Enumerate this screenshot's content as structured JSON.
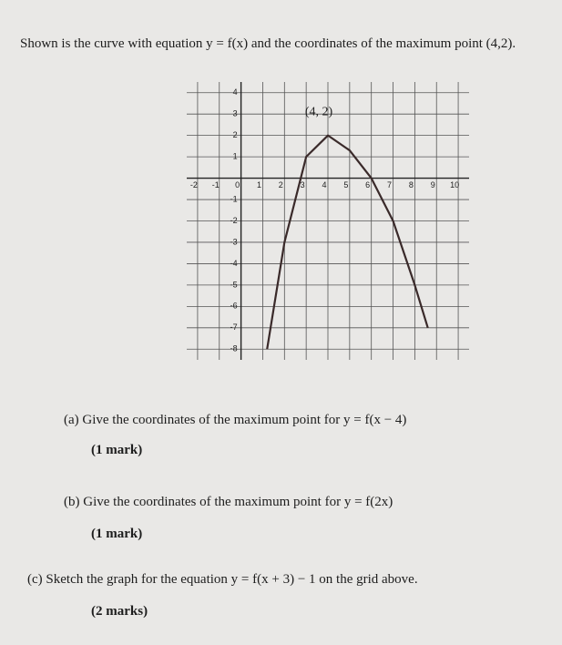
{
  "intro": "Shown is the curve with equation y = f(x) and the coordinates of the maximum point (4,2).",
  "chart_data": {
    "type": "line",
    "x": [
      1.2,
      2,
      3,
      4,
      5,
      6,
      7,
      8,
      8.6
    ],
    "values": [
      -8,
      -3,
      1,
      2,
      1.3,
      0,
      -2,
      -5,
      -7
    ],
    "color": "#3a2a2a",
    "xlim": [
      -2.5,
      10.5
    ],
    "xticks": [
      -2,
      -1,
      0,
      1,
      2,
      3,
      4,
      5,
      6,
      7,
      8,
      9,
      10
    ],
    "ylim": [
      -8.5,
      4.5
    ],
    "yticks": [
      -8,
      -7,
      -6,
      -5,
      -4,
      -3,
      -2,
      -1,
      1,
      2,
      3,
      4
    ],
    "grid": true,
    "annotation": "(4, 2)"
  },
  "parts": [
    {
      "question": "(a) Give the coordinates of the maximum point for y = f(x − 4)",
      "marks": "(1 mark)"
    },
    {
      "question": "(b) Give the coordinates of the maximum point for y = f(2x)",
      "marks": "(1 mark)"
    },
    {
      "question": "(c) Sketch the graph for the equation y = f(x + 3) − 1 on the grid above.",
      "marks": "(2 marks)"
    }
  ]
}
